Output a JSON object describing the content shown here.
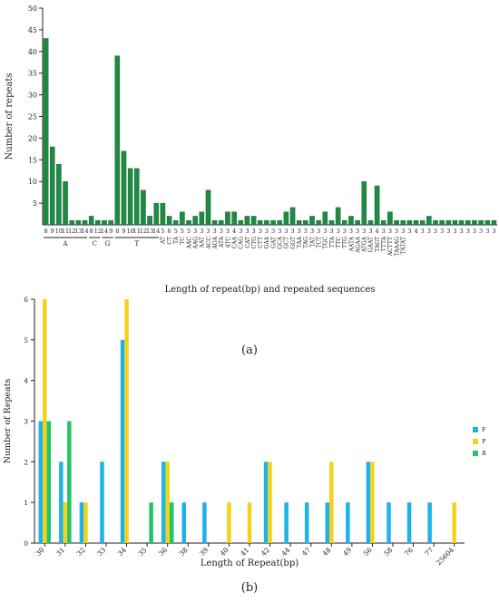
{
  "chart_data": [
    {
      "type": "bar",
      "xlabel": "Length of repeat(bp) and repeated sequences",
      "ylabel": "Number of repeats",
      "ylim": [
        0,
        50
      ],
      "yticks": [
        5,
        10,
        15,
        20,
        25,
        30,
        35,
        40,
        45,
        50
      ],
      "grid": false,
      "color": "#1f8a43",
      "categories": [
        "8",
        "9",
        "10",
        "11",
        "12",
        "13",
        "14",
        "8",
        "12",
        "14",
        "9",
        "8",
        "9",
        "10",
        "11",
        "12",
        "13",
        "14",
        "5",
        "6",
        "5",
        "5",
        "5",
        "3",
        "3",
        "3",
        "3",
        "3",
        "3",
        "4",
        "3",
        "3",
        "3",
        "3",
        "3",
        "3",
        "3",
        "3",
        "3",
        "3",
        "3",
        "3",
        "3",
        "3",
        "3",
        "3",
        "3",
        "3",
        "3",
        "3",
        "3",
        "4",
        "3",
        "3",
        "3",
        "3",
        "3",
        "4",
        "3",
        "3",
        "3",
        "3",
        "3",
        "3",
        "3",
        "3",
        "3",
        "3",
        "3",
        "3"
      ],
      "values": [
        43,
        18,
        14,
        10,
        1,
        1,
        1,
        2,
        1,
        1,
        1,
        39,
        17,
        13,
        13,
        8,
        2,
        5,
        5,
        2,
        1,
        3,
        1,
        2,
        3,
        8,
        1,
        1,
        3,
        3,
        1,
        2,
        2,
        1,
        1,
        1,
        1,
        3,
        4,
        1,
        1,
        2,
        1,
        3,
        1,
        4,
        1,
        2,
        1,
        10,
        1,
        9,
        1,
        3,
        1,
        1,
        1,
        1,
        1,
        2,
        1,
        1,
        1,
        1,
        1,
        1,
        1,
        1,
        1,
        1
      ],
      "group_labels": [
        {
          "label": "A",
          "from": 0,
          "to": 6
        },
        {
          "label": "C",
          "from": 7,
          "to": 8
        },
        {
          "label": "G",
          "from": 9,
          "to": 10
        },
        {
          "label": "T",
          "from": 11,
          "to": 17
        }
      ],
      "motif_labels": [
        "AT",
        "CT",
        "TA",
        "TC",
        "AAC",
        "AAG",
        "AAT",
        "ACC",
        "AGA",
        "ATA",
        "ATC",
        "CAA",
        "CAG",
        "CAT",
        "CTG",
        "CTT",
        "GAA",
        "GAT",
        "GCA",
        "GCT",
        "GGT",
        "TAA",
        "TAG",
        "TAT",
        "TCT",
        "TGC",
        "TTA",
        "TTC",
        "TTG",
        "AATA",
        "AGAA",
        "ATGA",
        "GAAT",
        "TAGT",
        "TTTA",
        "ACTTT",
        "TAAAG",
        "TATAT"
      ],
      "panel_label": "(a)"
    },
    {
      "type": "bar",
      "xlabel": "Length of Repeat(bp)",
      "ylabel": "Number of Repeats",
      "ylim": [
        0,
        6
      ],
      "yticks": [
        0,
        1,
        2,
        3,
        4,
        5,
        6
      ],
      "grid": false,
      "legend_position": "right",
      "categories": [
        "30",
        "31",
        "32",
        "33",
        "34",
        "35",
        "36",
        "38",
        "39",
        "40",
        "41",
        "42",
        "44",
        "47",
        "48",
        "49",
        "56",
        "58",
        "76",
        "77",
        "25604"
      ],
      "series": [
        {
          "name": "F",
          "color": "#1bb3e8",
          "values": [
            3,
            2,
            1,
            2,
            5,
            0,
            2,
            1,
            1,
            0,
            0,
            2,
            1,
            1,
            1,
            1,
            2,
            1,
            1,
            1,
            0
          ]
        },
        {
          "name": "P",
          "color": "#f5d21a",
          "values": [
            6,
            1,
            1,
            0,
            6,
            0,
            2,
            0,
            0,
            1,
            1,
            2,
            0,
            0,
            2,
            0,
            2,
            0,
            0,
            0,
            1
          ]
        },
        {
          "name": "R",
          "color": "#22c46a",
          "values": [
            3,
            3,
            0,
            0,
            0,
            1,
            1,
            0,
            0,
            0,
            0,
            0,
            0,
            0,
            0,
            0,
            0,
            0,
            0,
            0,
            0
          ]
        }
      ],
      "panel_label": "(b)"
    }
  ]
}
